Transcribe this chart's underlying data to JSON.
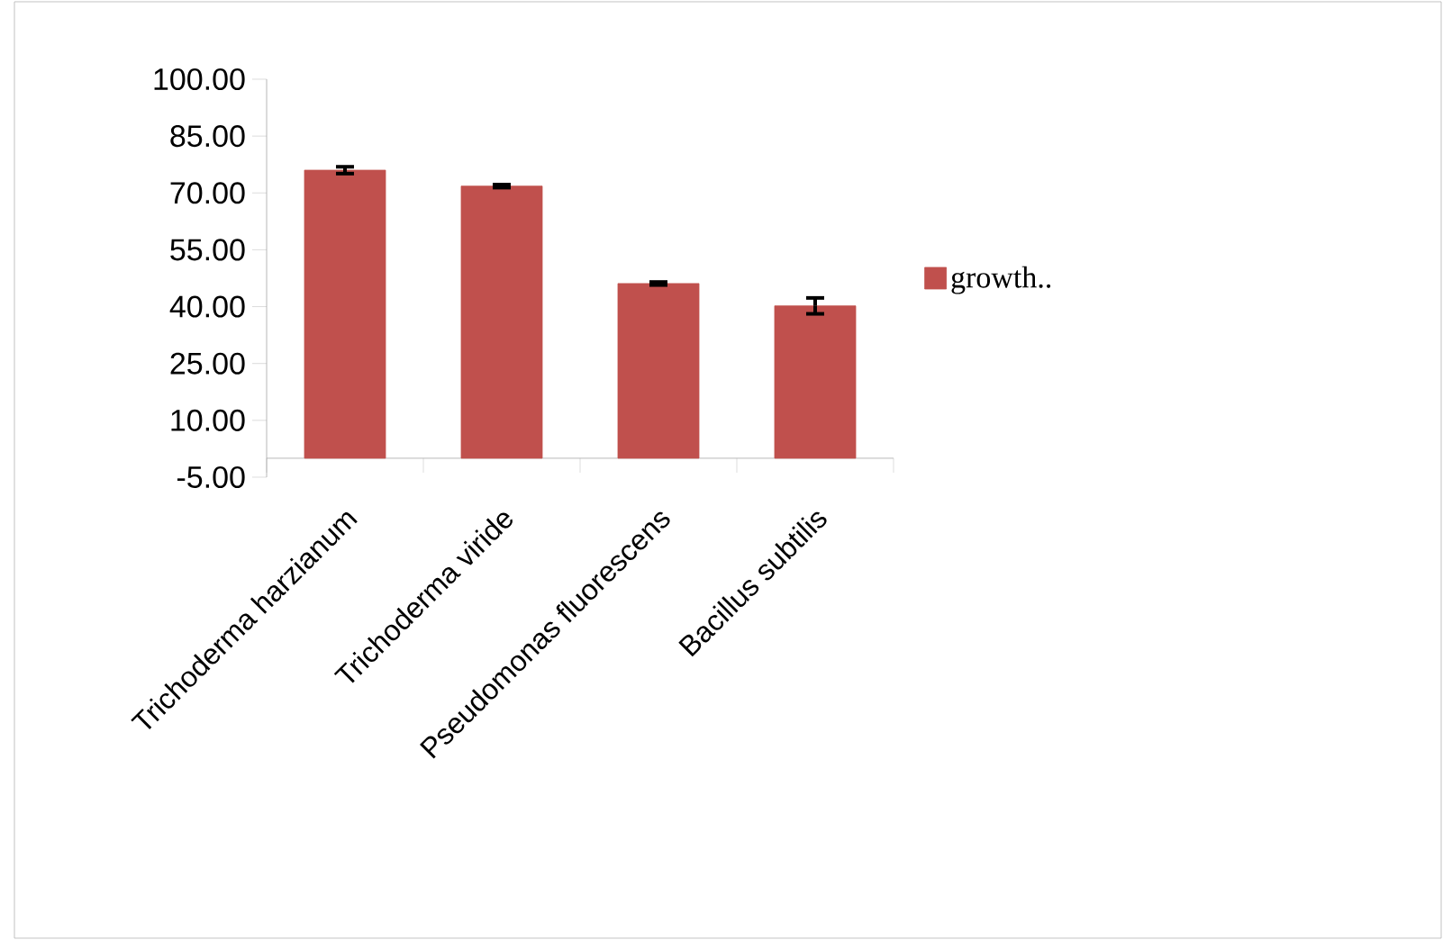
{
  "chart_data": {
    "type": "bar",
    "categories": [
      "Trichoderma harzianum",
      "Trichoderma viride",
      "Pseudomonas fluorescens",
      "Bacillus subtilis"
    ],
    "series": [
      {
        "name": "growth..",
        "color": "#c0504d",
        "values": [
          76.0,
          71.8,
          46.1,
          40.2
        ],
        "errors": [
          0.9,
          0.4,
          0.4,
          2.1
        ]
      }
    ],
    "ylim": [
      -5,
      100
    ],
    "yticks": [
      {
        "value": -5,
        "label": "-5.00"
      },
      {
        "value": 10,
        "label": "10.00"
      },
      {
        "value": 25,
        "label": "25.00"
      },
      {
        "value": 40,
        "label": "40.00"
      },
      {
        "value": 55,
        "label": "55.00"
      },
      {
        "value": 70,
        "label": "70.00"
      },
      {
        "value": 85,
        "label": "85.00"
      },
      {
        "value": 100,
        "label": "100.00"
      }
    ],
    "legend": "right"
  }
}
